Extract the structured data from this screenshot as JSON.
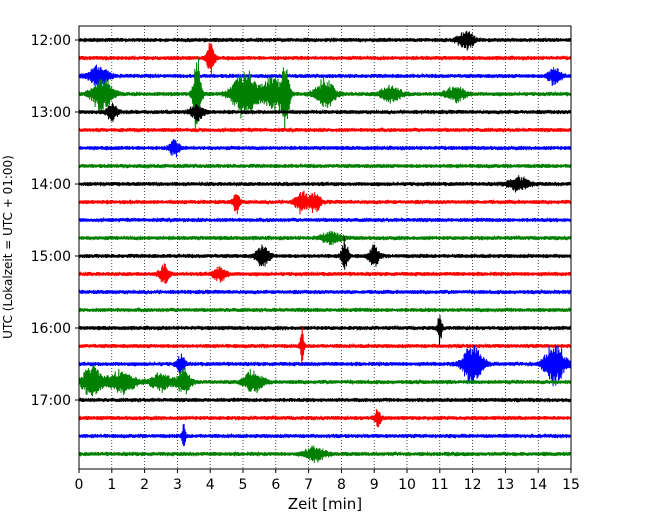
{
  "chart_data": {
    "type": "line",
    "title": "",
    "xlabel": "Zeit  [min]",
    "ylabel": "UTC (Lokalzeit = UTC + 01:00)",
    "xlim": [
      0,
      15
    ],
    "x_ticks": [
      "0",
      "1",
      "2",
      "3",
      "4",
      "5",
      "6",
      "7",
      "8",
      "9",
      "10",
      "11",
      "12",
      "13",
      "14",
      "15"
    ],
    "y_ticks": [
      "12:00",
      "13:00",
      "14:00",
      "15:00",
      "16:00",
      "17:00"
    ],
    "grid": "vertical-dotted",
    "trace_interval_minutes": 15,
    "colors": [
      "#000000",
      "#ff0000",
      "#0000ff",
      "#008000"
    ],
    "traces": [
      {
        "start": "12:00",
        "color": "#000000",
        "bursts": [
          [
            11.8,
            0.25,
            1.2
          ]
        ]
      },
      {
        "start": "12:15",
        "color": "#ff0000",
        "bursts": [
          [
            4.0,
            0.12,
            2.5
          ]
        ]
      },
      {
        "start": "12:30",
        "color": "#0000ff",
        "bursts": [
          [
            0.6,
            0.3,
            1.4
          ],
          [
            14.5,
            0.2,
            1.3
          ]
        ]
      },
      {
        "start": "12:45",
        "color": "#008000",
        "bursts": [
          [
            0.7,
            0.3,
            2.5
          ],
          [
            3.6,
            0.12,
            6.0
          ],
          [
            4.9,
            0.3,
            2.0
          ],
          [
            5.2,
            0.3,
            2.2
          ],
          [
            5.9,
            0.3,
            2.5
          ],
          [
            6.3,
            0.12,
            5.0
          ],
          [
            7.5,
            0.3,
            2.0
          ],
          [
            9.5,
            0.3,
            1.2
          ],
          [
            11.5,
            0.3,
            1.0
          ]
        ]
      },
      {
        "start": "13:00",
        "color": "#000000",
        "bursts": [
          [
            1.0,
            0.15,
            1.4
          ],
          [
            3.6,
            0.2,
            1.2
          ]
        ]
      },
      {
        "start": "13:15",
        "color": "#ff0000",
        "bursts": []
      },
      {
        "start": "13:30",
        "color": "#0000ff",
        "bursts": [
          [
            2.9,
            0.15,
            1.2
          ]
        ]
      },
      {
        "start": "13:45",
        "color": "#008000",
        "bursts": []
      },
      {
        "start": "14:00",
        "color": "#000000",
        "bursts": [
          [
            13.4,
            0.3,
            1.0
          ]
        ]
      },
      {
        "start": "14:15",
        "color": "#ff0000",
        "bursts": [
          [
            4.8,
            0.1,
            1.5
          ],
          [
            6.8,
            0.2,
            1.5
          ],
          [
            7.2,
            0.15,
            1.4
          ]
        ]
      },
      {
        "start": "14:30",
        "color": "#0000ff",
        "bursts": []
      },
      {
        "start": "14:45",
        "color": "#008000",
        "bursts": [
          [
            7.7,
            0.3,
            0.8
          ]
        ]
      },
      {
        "start": "15:00",
        "color": "#000000",
        "bursts": [
          [
            5.6,
            0.2,
            1.5
          ],
          [
            8.1,
            0.1,
            2.5
          ],
          [
            9.0,
            0.15,
            1.6
          ]
        ]
      },
      {
        "start": "15:15",
        "color": "#ff0000",
        "bursts": [
          [
            2.6,
            0.15,
            1.3
          ],
          [
            4.3,
            0.2,
            1.0
          ]
        ]
      },
      {
        "start": "15:30",
        "color": "#0000ff",
        "bursts": []
      },
      {
        "start": "15:45",
        "color": "#008000",
        "bursts": []
      },
      {
        "start": "16:00",
        "color": "#000000",
        "bursts": [
          [
            11.0,
            0.06,
            2.5
          ]
        ]
      },
      {
        "start": "16:15",
        "color": "#ff0000",
        "bursts": [
          [
            6.8,
            0.05,
            3.0
          ]
        ]
      },
      {
        "start": "16:30",
        "color": "#0000ff",
        "bursts": [
          [
            3.1,
            0.12,
            1.4
          ],
          [
            12.0,
            0.3,
            2.8
          ],
          [
            14.5,
            0.3,
            3.0
          ]
        ]
      },
      {
        "start": "16:45",
        "color": "#008000",
        "bursts": [
          [
            0.4,
            0.3,
            2.2
          ],
          [
            1.3,
            0.4,
            1.6
          ],
          [
            2.5,
            0.3,
            1.4
          ],
          [
            3.2,
            0.2,
            1.8
          ],
          [
            5.3,
            0.3,
            1.5
          ]
        ]
      },
      {
        "start": "17:00",
        "color": "#000000",
        "bursts": []
      },
      {
        "start": "17:15",
        "color": "#ff0000",
        "bursts": [
          [
            9.1,
            0.1,
            1.2
          ]
        ]
      },
      {
        "start": "17:30",
        "color": "#0000ff",
        "bursts": [
          [
            3.2,
            0.06,
            1.6
          ]
        ]
      },
      {
        "start": "17:45",
        "color": "#008000",
        "bursts": [
          [
            7.2,
            0.3,
            1.0
          ]
        ]
      }
    ]
  }
}
